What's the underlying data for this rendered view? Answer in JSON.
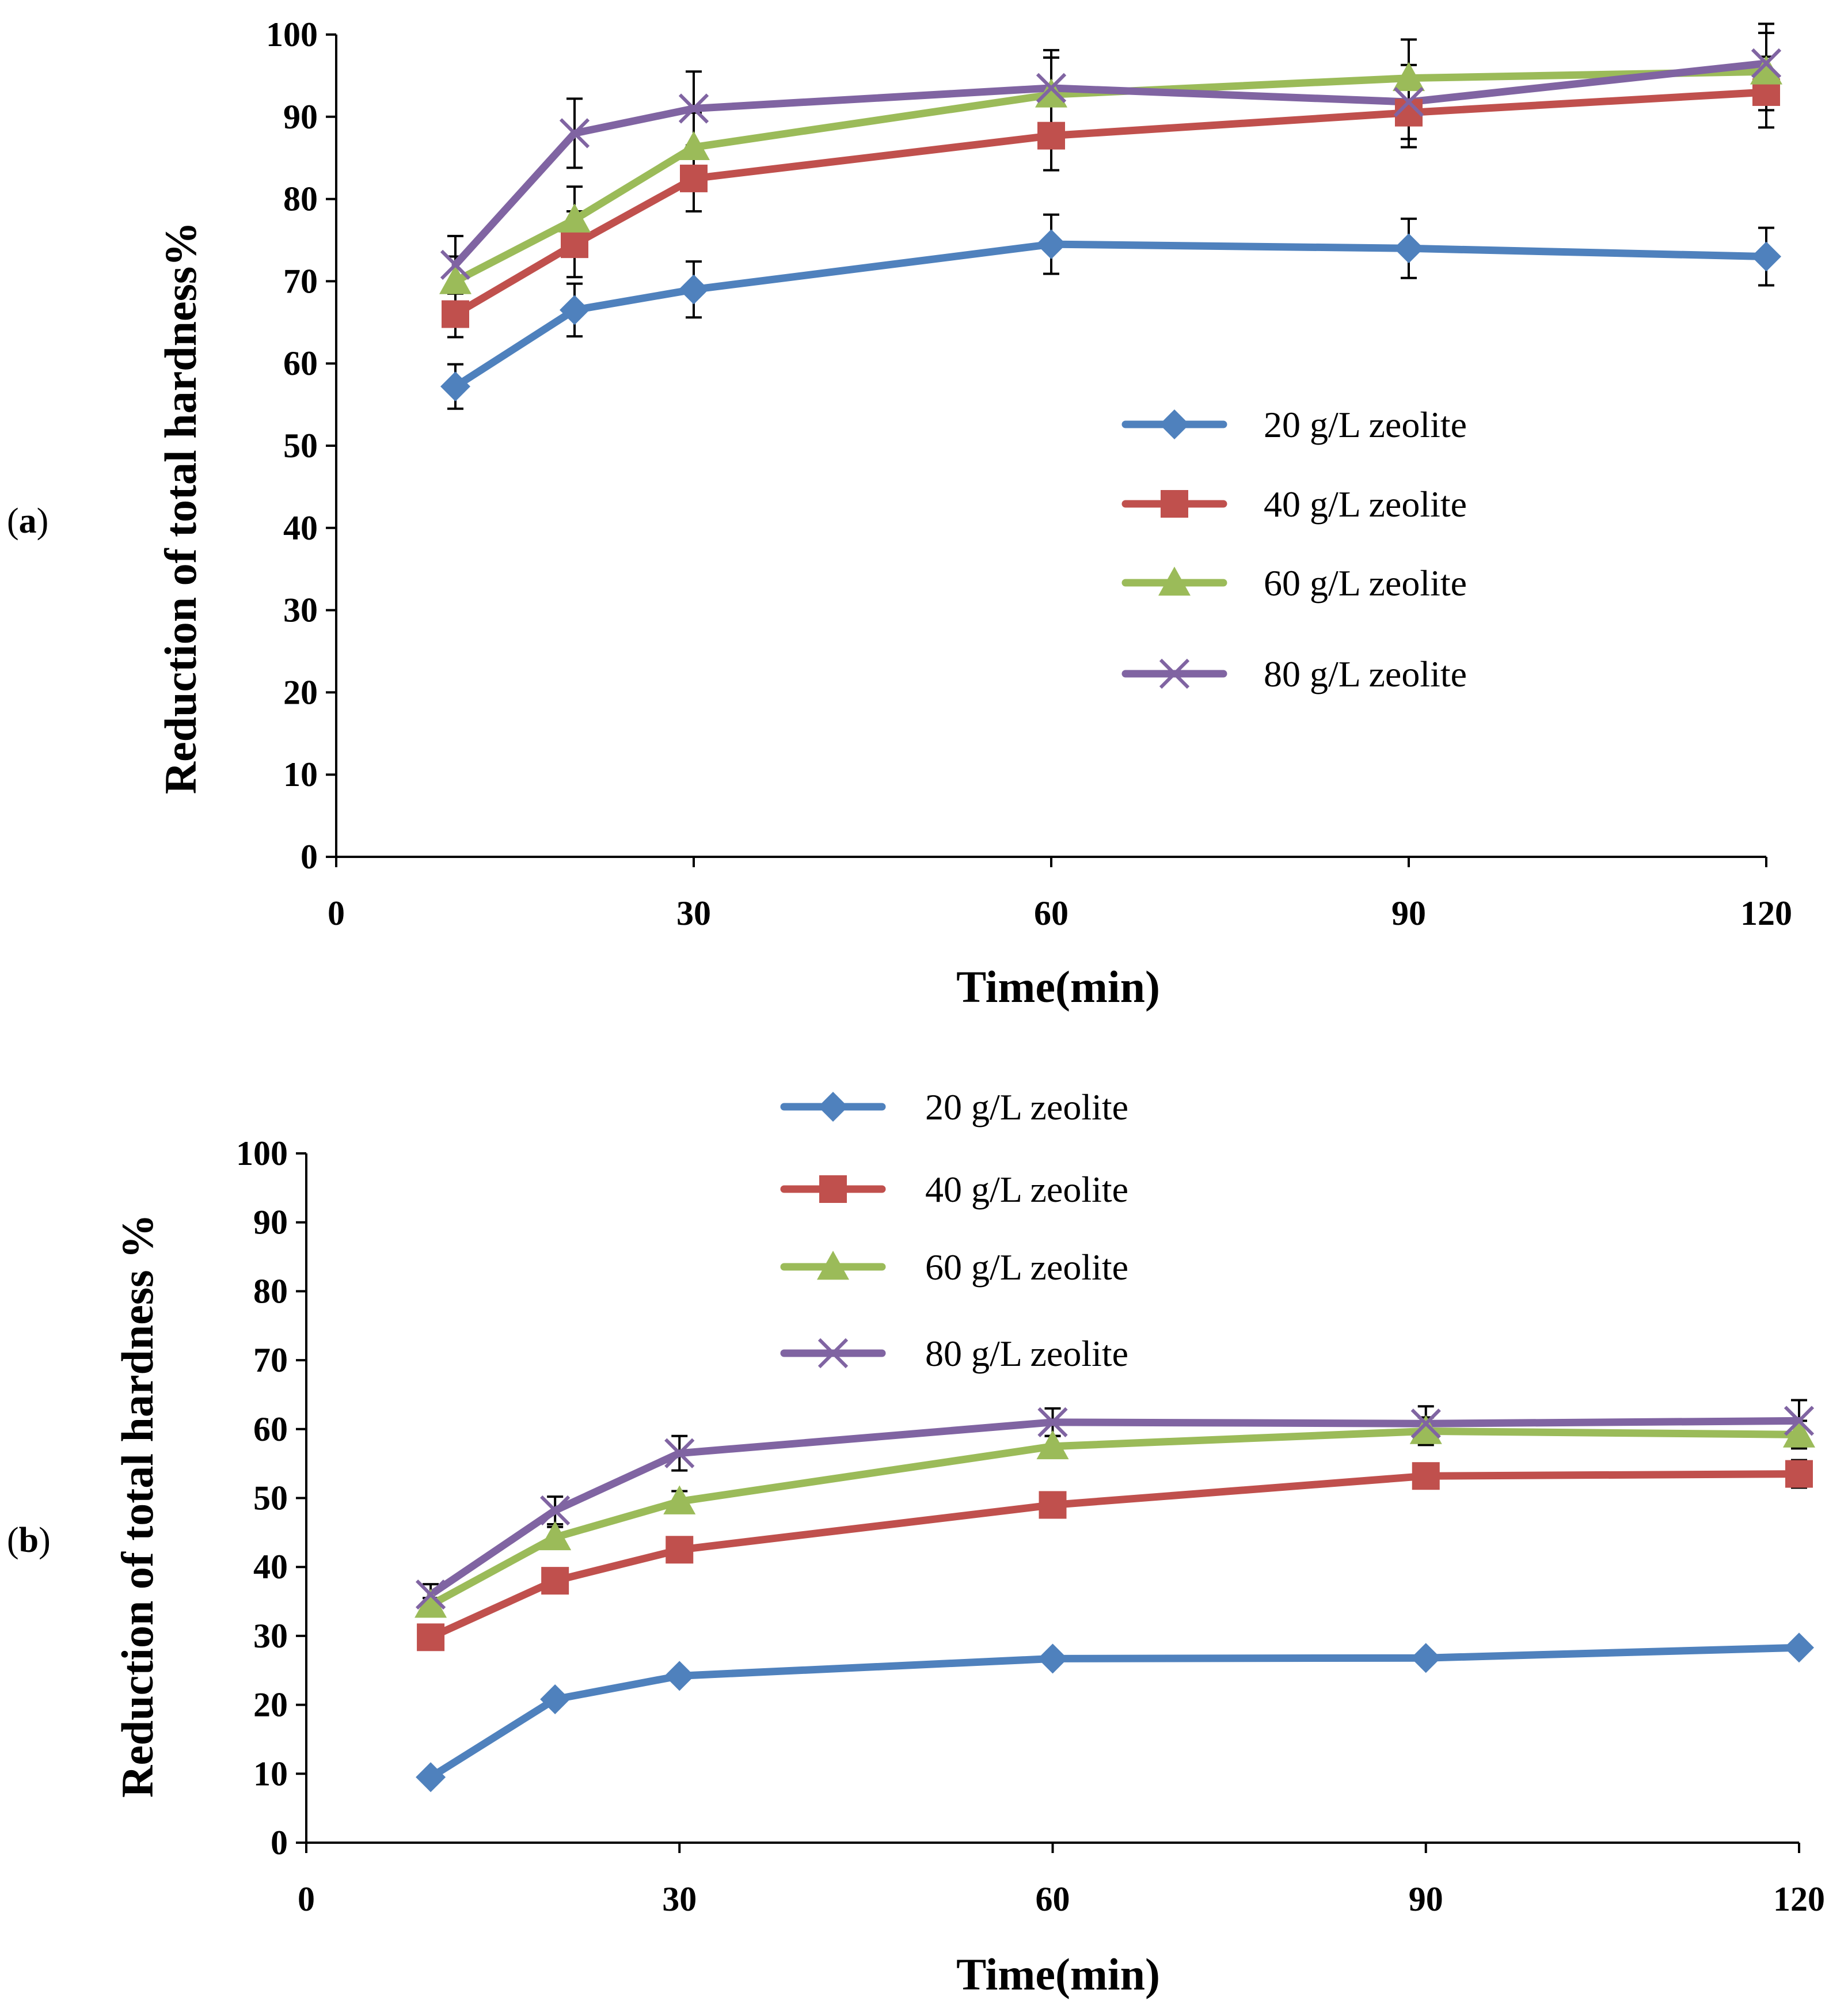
{
  "figure": {
    "panels": [
      {
        "label_open": "(",
        "label_letter": "a",
        "label_close": ")"
      },
      {
        "label_open": "(",
        "label_letter": "b",
        "label_close": ")"
      }
    ]
  },
  "chart_data": [
    {
      "type": "line",
      "panel": "a",
      "xlabel": "Time(min)",
      "ylabel": "Reduction of total hardness%",
      "xlim": [
        0,
        120
      ],
      "ylim": [
        0,
        100
      ],
      "xticks": [
        "0",
        "30",
        "60",
        "90",
        "120"
      ],
      "yticks": [
        "0",
        "10",
        "20",
        "30",
        "40",
        "50",
        "60",
        "70",
        "80",
        "90",
        "100"
      ],
      "legend_position": "center-right",
      "x": [
        10,
        20,
        30,
        60,
        90,
        120
      ],
      "series": [
        {
          "name": "20 g/L zeolite",
          "color": "#4F81BD",
          "marker": "diamond",
          "values": [
            57.2,
            66.5,
            69.0,
            74.5,
            74.0,
            73.0
          ],
          "errors": [
            2.7,
            3.2,
            3.4,
            3.6,
            3.6,
            3.5
          ]
        },
        {
          "name": "40 g/L zeolite",
          "color": "#C0504D",
          "marker": "square",
          "values": [
            66.0,
            74.5,
            82.5,
            87.7,
            90.5,
            93.0
          ],
          "errors": [
            2.8,
            4.0,
            4.0,
            4.2,
            4.2,
            4.3
          ]
        },
        {
          "name": "60 g/L zeolite",
          "color": "#9BBB59",
          "marker": "triangle",
          "values": [
            70.0,
            77.5,
            86.3,
            92.7,
            94.7,
            95.5
          ],
          "errors": [
            3.0,
            4.0,
            4.2,
            4.5,
            4.7,
            4.7
          ]
        },
        {
          "name": "80 g/L zeolite",
          "color": "#8064A2",
          "marker": "x",
          "values": [
            72.0,
            88.0,
            91.0,
            93.5,
            91.8,
            96.5
          ],
          "errors": [
            3.5,
            4.2,
            4.5,
            4.6,
            4.5,
            4.8
          ]
        }
      ]
    },
    {
      "type": "line",
      "panel": "b",
      "xlabel": "Time(min)",
      "ylabel": "Reduction of total hardness %",
      "xlim": [
        0,
        120
      ],
      "ylim": [
        0,
        100
      ],
      "xticks": [
        "0",
        "30",
        "60",
        "90",
        "120"
      ],
      "yticks": [
        "0",
        "10",
        "20",
        "30",
        "40",
        "50",
        "60",
        "70",
        "80",
        "90",
        "100"
      ],
      "legend_position": "top-center",
      "x": [
        10,
        20,
        30,
        60,
        90,
        120
      ],
      "series": [
        {
          "name": "20 g/L zeolite",
          "color": "#4F81BD",
          "marker": "diamond",
          "values": [
            9.5,
            20.8,
            24.2,
            26.7,
            26.8,
            28.3
          ],
          "errors": [
            0,
            0,
            0,
            0,
            0,
            0
          ]
        },
        {
          "name": "40 g/L zeolite",
          "color": "#C0504D",
          "marker": "square",
          "values": [
            29.8,
            38.0,
            42.5,
            49.0,
            53.2,
            53.5
          ],
          "errors": [
            0.8,
            0.8,
            0.8,
            0.8,
            1.5,
            2.0
          ]
        },
        {
          "name": "60 g/L zeolite",
          "color": "#9BBB59",
          "marker": "triangle",
          "values": [
            34.5,
            44.3,
            49.5,
            57.5,
            59.7,
            59.2
          ],
          "errors": [
            1.0,
            1.5,
            1.5,
            1.5,
            2.0,
            2.0
          ]
        },
        {
          "name": "80 g/L zeolite",
          "color": "#8064A2",
          "marker": "x",
          "values": [
            36.0,
            48.2,
            56.5,
            61.0,
            60.8,
            61.2
          ],
          "errors": [
            1.5,
            2.0,
            2.5,
            2.0,
            2.5,
            3.0
          ]
        }
      ]
    }
  ]
}
